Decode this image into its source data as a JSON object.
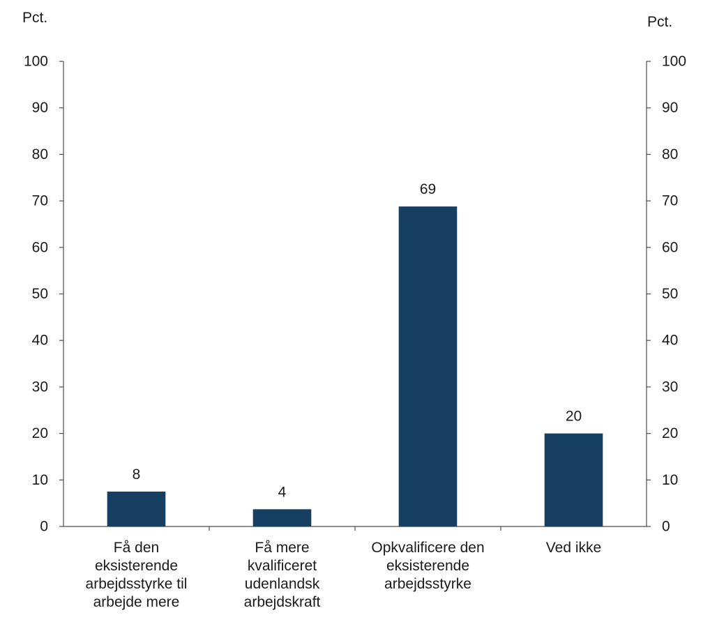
{
  "chart_data": {
    "type": "bar",
    "left_unit_label": "Pct.",
    "right_unit_label": "Pct.",
    "categories": [
      [
        "Få den",
        "eksisterende",
        "arbejdsstyrke til",
        "arbejde mere"
      ],
      [
        "Få mere",
        "kvalificeret",
        "udenlandsk",
        "arbejdskraft"
      ],
      [
        "Opkvalificere den",
        "eksisterende",
        "arbejdsstyrke"
      ],
      [
        "Ved ikke"
      ]
    ],
    "values": [
      7.5,
      3.7,
      68.8,
      20
    ],
    "value_labels": [
      "8",
      "4",
      "69",
      "20"
    ],
    "ylim": [
      0,
      100
    ],
    "yticks": [
      0,
      10,
      20,
      30,
      40,
      50,
      60,
      70,
      80,
      90,
      100
    ],
    "bar_color": "#173f61",
    "grid": false,
    "legend": "none"
  }
}
